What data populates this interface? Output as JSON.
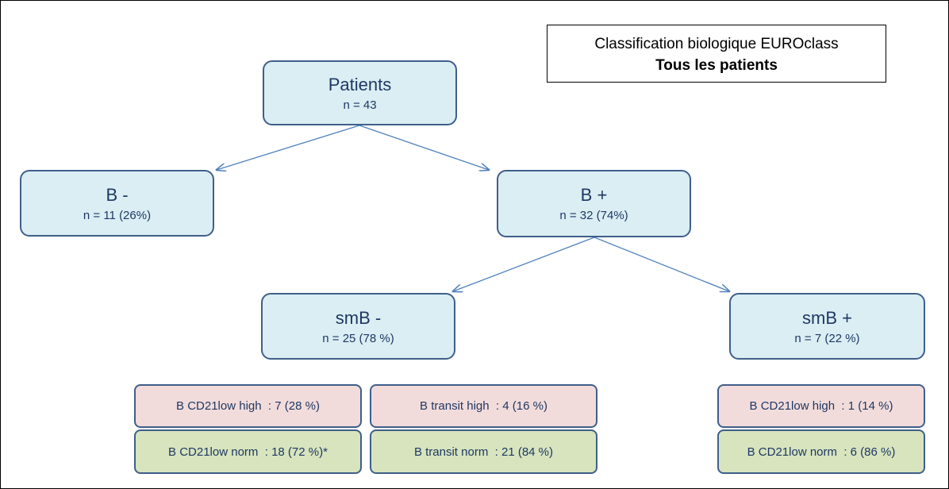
{
  "header": {
    "title": "Classification biologique EUROclass",
    "subtitle": "Tous les patients"
  },
  "nodes": [
    {
      "label": "Patients",
      "detail": "n = 43"
    },
    {
      "label": "B -",
      "detail": "n = 11 (26%)"
    },
    {
      "label": "B +",
      "detail": "n = 32 (74%)"
    },
    {
      "label": "smB -",
      "detail": "n = 25 (78 %)"
    },
    {
      "label": "smB +",
      "detail": "n = 7 (22 %)"
    }
  ],
  "subgroups": [
    {
      "high": "B CD21low high  : 7 (28 %)",
      "norm": "B CD21low norm  : 18 (72 %)*"
    },
    {
      "high": "B transit high  : 4 (16 %)",
      "norm": "B transit norm  : 21 (84 %)"
    },
    {
      "high": "B CD21low high  : 1 (14 %)",
      "norm": "B CD21low norm  : 6 (86 %)"
    }
  ]
}
